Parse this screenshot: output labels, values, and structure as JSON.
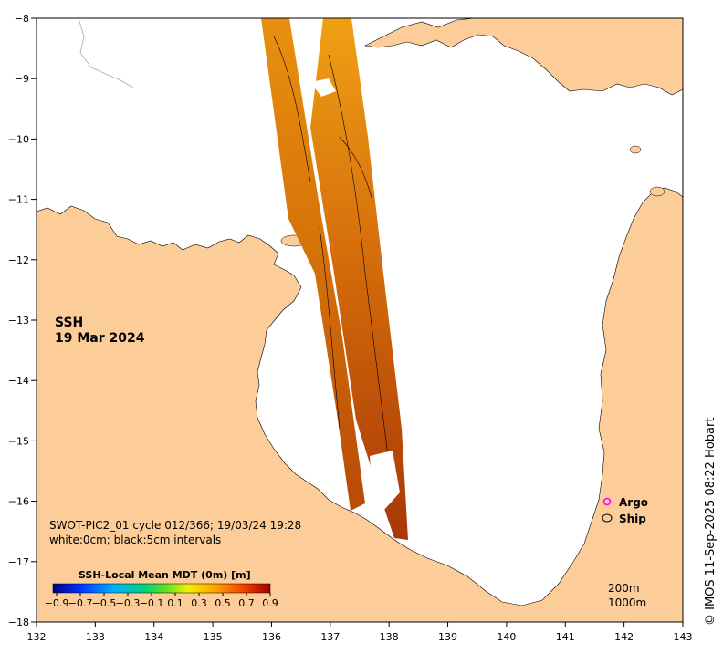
{
  "map": {
    "title": "SSH",
    "date": "19 Mar 2024",
    "info_line1": "SWOT-PIC2_01 cycle 012/366; 19/03/24 19:28",
    "info_line2": "white:0cm; black:5cm intervals",
    "credit": "© IMOS 11-Sep-2025 08:22 Hobart",
    "colors": {
      "land": "#fccc99",
      "sea": "#ffffff",
      "argo": "#ff00ff"
    }
  },
  "axes": {
    "x_ticks": [
      "132",
      "133",
      "134",
      "135",
      "136",
      "137",
      "138",
      "139",
      "140",
      "141",
      "142",
      "143"
    ],
    "y_ticks": [
      "−8",
      "−9",
      "−10",
      "−11",
      "−12",
      "−13",
      "−14",
      "−15",
      "−16",
      "−17",
      "−18"
    ]
  },
  "colorbar": {
    "title": "SSH-Local Mean MDT (0m) [m]",
    "ticks": [
      "−0.9",
      "−0.7",
      "−0.5",
      "−0.3",
      "−0.1",
      "0.1",
      "0.3",
      "0.5",
      "0.7",
      "0.9"
    ],
    "range": [
      -0.9,
      0.9
    ]
  },
  "legend": {
    "argo": "Argo",
    "ship": "Ship"
  },
  "depths": {
    "d200": "200m",
    "d1000": "1000m"
  }
}
